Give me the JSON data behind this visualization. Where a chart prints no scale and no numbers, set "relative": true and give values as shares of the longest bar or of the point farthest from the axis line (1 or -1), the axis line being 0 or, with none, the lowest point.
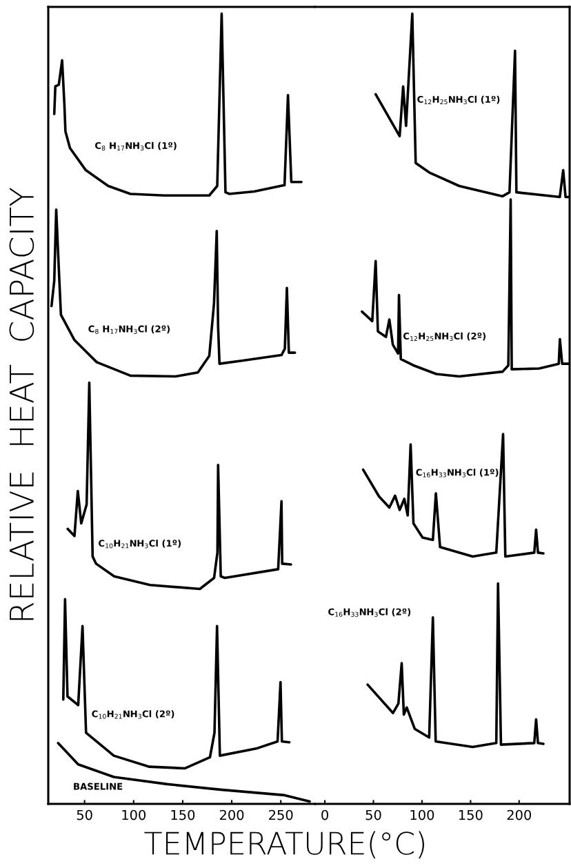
{
  "chart_data": [
    {
      "type": "line",
      "relative": true,
      "ylabel": "RELATIVE  HEAT  CAPACITY",
      "xlabel": "TEMPERATURE(°C)",
      "xlim": [
        13,
        285
      ],
      "xticks": [
        50,
        100,
        150,
        200,
        250
      ],
      "tick_labels": "x",
      "series": [
        {
          "name": "C$_{8}$ H$_{17}$NH$_{3}$Cl (1º)",
          "color": "#000000",
          "x": [
            19.1,
            20.2,
            23.7,
            27.1,
            29.4,
            30.5,
            35.1,
            51.2,
            74.1,
            96.7,
            131.1,
            177.1,
            185.2,
            189.7,
            193.6,
            197.7,
            222.9,
            253.8,
            257.3,
            260.7,
            271.0
          ],
          "values": [
            0.873,
            0.908,
            0.91,
            0.941,
            0.886,
            0.851,
            0.83,
            0.802,
            0.782,
            0.772,
            0.77,
            0.77,
            0.782,
            1.0,
            0.774,
            0.772,
            0.775,
            0.783,
            0.897,
            0.787,
            0.787
          ]
        },
        {
          "name": "C$_{8}$ H$_{17}$NH$_{3}$Cl (2º)",
          "color": "#000000",
          "x": [
            16.3,
            19.1,
            21.1,
            23.9,
            25.9,
            39.7,
            62.4,
            96.7,
            142.8,
            165.5,
            177.1,
            181.9,
            184.7,
            186.1,
            187.5,
            211.5,
            250.7,
            254.1,
            256.2,
            258.2,
            264.4
          ],
          "values": [
            0.63,
            0.662,
            0.752,
            0.673,
            0.619,
            0.587,
            0.559,
            0.542,
            0.541,
            0.546,
            0.567,
            0.633,
            0.725,
            0.604,
            0.557,
            0.561,
            0.568,
            0.576,
            0.653,
            0.571,
            0.571
          ]
        },
        {
          "name": "C$_{10}$H$_{21}$NH$_{3}$Cl (1º)",
          "color": "#000000",
          "x": [
            32.8,
            39.7,
            43.1,
            46.6,
            52.1,
            54.8,
            58.2,
            61.7,
            80.2,
            116.7,
            167.5,
            182.0,
            185.4,
            186.1,
            188.8,
            193.0,
            247.3,
            250.7,
            251.4,
            260.3
          ],
          "values": [
            0.348,
            0.339,
            0.396,
            0.355,
            0.379,
            0.533,
            0.313,
            0.304,
            0.288,
            0.277,
            0.272,
            0.286,
            0.318,
            0.429,
            0.288,
            0.286,
            0.297,
            0.383,
            0.304,
            0.303
          ]
        },
        {
          "name": "C$_{10}$H$_{21}$NH$_{3}$Cl (2º)",
          "color": "#000000",
          "x": [
            28.3,
            30.1,
            32.6,
            43.5,
            47.9,
            51.5,
            79.8,
            116.1,
            152.4,
            177.8,
            182.4,
            185.0,
            187.9,
            224.9,
            246.7,
            249.7,
            251.1,
            258.7
          ],
          "values": [
            0.132,
            0.259,
            0.136,
            0.125,
            0.225,
            0.09,
            0.061,
            0.047,
            0.045,
            0.059,
            0.09,
            0.225,
            0.061,
            0.07,
            0.079,
            0.154,
            0.079,
            0.078
          ]
        },
        {
          "name": "BASELINE",
          "color": "#000000",
          "x": [
            23.0,
            43.5,
            79.8,
            134.2,
            188.6,
            253.9,
            279.4
          ],
          "values": [
            0.077,
            0.05,
            0.034,
            0.025,
            0.018,
            0.011,
            0.003
          ]
        }
      ]
    },
    {
      "type": "line",
      "relative": true,
      "xlim": [
        -10,
        252
      ],
      "xticks": [
        0,
        50,
        100,
        150,
        200
      ],
      "tick_labels": "x",
      "series": [
        {
          "name": "C$_{12}$H$_{25}$NH$_{3}$Cl (1º)",
          "color": "#000000",
          "x": [
            52.3,
            77.0,
            80.6,
            83.6,
            90.0,
            93.5,
            107.6,
            138.3,
            183.0,
            190.1,
            195.8,
            197.2,
            241.9,
            245.4,
            247.8,
            251.6
          ],
          "values": [
            0.898,
            0.845,
            0.908,
            0.858,
            1.0,
            0.811,
            0.799,
            0.782,
            0.769,
            0.774,
            0.953,
            0.774,
            0.768,
            0.802,
            0.768,
            0.768
          ]
        },
        {
          "name": "C$_{12}$H$_{25}$NH$_{3}$Cl (2º)",
          "color": "#000000",
          "x": [
            38.2,
            48.8,
            52.3,
            54.6,
            62.9,
            66.4,
            70.0,
            75.4,
            76.3,
            78.2,
            91.2,
            114.7,
            138.3,
            183.0,
            188.9,
            191.3,
            192.4,
            220.7,
            240.8,
            242.0,
            244.3,
            251.4
          ],
          "values": [
            0.623,
            0.611,
            0.687,
            0.598,
            0.591,
            0.613,
            0.581,
            0.57,
            0.644,
            0.563,
            0.555,
            0.544,
            0.541,
            0.547,
            0.555,
            0.765,
            0.55,
            0.551,
            0.557,
            0.588,
            0.557,
            0.557
          ]
        },
        {
          "name": "C$_{16}$H$_{33}$NH$_{3}$Cl (1º)",
          "color": "#000000",
          "x": [
            39.4,
            55.8,
            66.4,
            72.3,
            77.0,
            81.8,
            85.3,
            88.3,
            91.2,
            100.6,
            111.2,
            114.3,
            118.6,
            152.2,
            176.5,
            183.5,
            185.8,
            215.6,
            217.5,
            219.4,
            225.0
          ],
          "values": [
            0.423,
            0.389,
            0.375,
            0.39,
            0.372,
            0.386,
            0.365,
            0.455,
            0.355,
            0.337,
            0.334,
            0.393,
            0.325,
            0.313,
            0.318,
            0.468,
            0.313,
            0.318,
            0.347,
            0.318,
            0.317
          ]
        },
        {
          "name": "C$_{16}$H$_{33}$NH$_{3}$Cl (2º)",
          "color": "#000000",
          "x": [
            44.0,
            70.1,
            75.7,
            79.1,
            81.3,
            84.3,
            92.5,
            107.4,
            111.2,
            114.1,
            152.2,
            176.5,
            178.3,
            181.3,
            215.6,
            217.5,
            219.4,
            225.0
          ],
          "values": [
            0.151,
            0.115,
            0.127,
            0.178,
            0.113,
            0.122,
            0.095,
            0.084,
            0.236,
            0.079,
            0.072,
            0.077,
            0.279,
            0.075,
            0.077,
            0.107,
            0.077,
            0.076
          ]
        }
      ]
    }
  ]
}
